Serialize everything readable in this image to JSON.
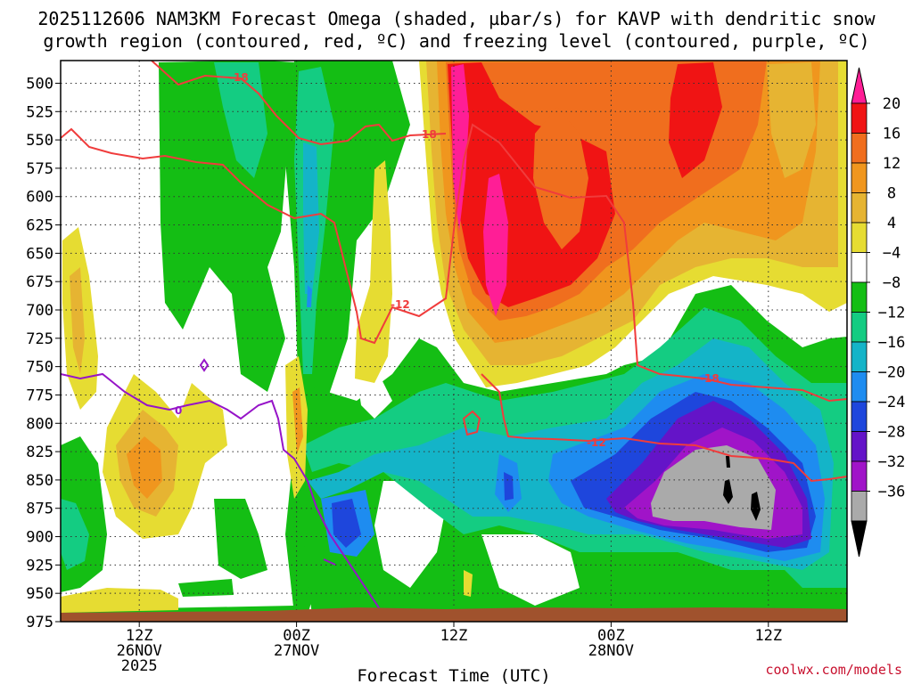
{
  "title_line1": "2025112606 NAM3KM Forecast Omega (shaded, µbar/s) for KAVP with dendritic snow",
  "title_line2": "growth region (contoured, red, ºC) and freezing level (contoured, purple, ºC)",
  "credit": "coolwx.com/models",
  "chart_data": {
    "type": "heatmap",
    "title": "2025112606 NAM3KM Forecast Omega (shaded, µbar/s) for KAVP with dendritic snow growth region (contoured, red, ºC) and freezing level (contoured, purple, ºC)",
    "xlabel": "Forecast Time (UTC)",
    "ylabel": "",
    "x_range_hours": [
      0,
      60
    ],
    "y_range": [
      975,
      480
    ],
    "y_ticks": [
      500,
      525,
      550,
      575,
      600,
      625,
      650,
      675,
      700,
      725,
      750,
      775,
      800,
      825,
      850,
      875,
      900,
      925,
      950,
      975
    ],
    "x_ticks": [
      {
        "hour": 6,
        "line1": "12Z",
        "line2": "26NOV",
        "line3": "2025"
      },
      {
        "hour": 18,
        "line1": "00Z",
        "line2": "27NOV",
        "line3": ""
      },
      {
        "hour": 30,
        "line1": "12Z",
        "line2": "",
        "line3": ""
      },
      {
        "hour": 42,
        "line1": "00Z",
        "line2": "28NOV",
        "line3": ""
      },
      {
        "hour": 54,
        "line1": "12Z",
        "line2": "",
        "line3": ""
      }
    ],
    "grid": true,
    "colorbar": {
      "labels": [
        "20",
        "16",
        "12",
        "8",
        "4",
        "−4",
        "−8",
        "−12",
        "−16",
        "−20",
        "−24",
        "−28",
        "−32",
        "−36"
      ],
      "colors": [
        "#f01414",
        "#f06e1e",
        "#f0961e",
        "#e6b432",
        "#e6dc32",
        "#ffffff",
        "#14be14",
        "#14cc82",
        "#14b4c8",
        "#1e8cf0",
        "#1e46dc",
        "#6414c8",
        "#a014c8",
        "#aaaaaa"
      ],
      "top_color": "#ff1e96",
      "bottom_color": "#000000"
    },
    "contours": {
      "dendritic_label_a": "-18",
      "dendritic_label_b": "-12",
      "freezing_label": "0",
      "dendritic_color": "#f03c3c",
      "freezing_color": "#9614c8"
    },
    "ground_color": "#a0522d"
  }
}
